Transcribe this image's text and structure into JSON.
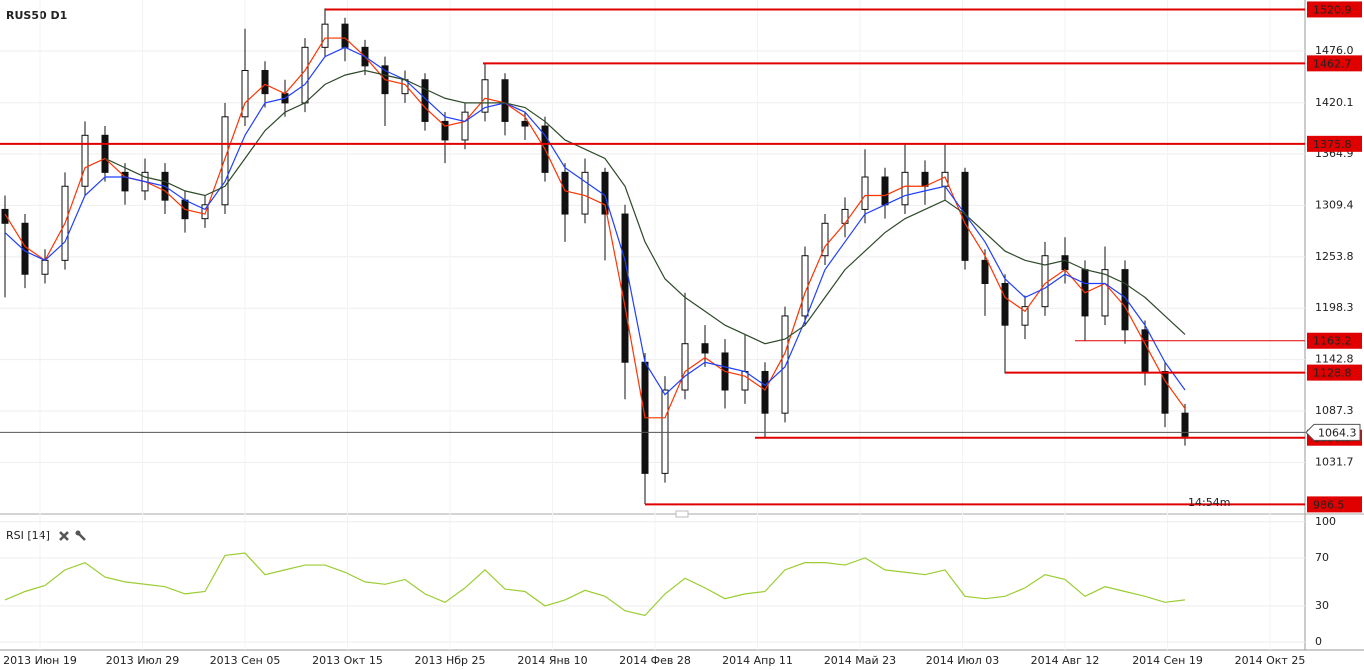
{
  "chart_data": [
    {
      "type": "candlestick",
      "title": "RUS50 D1",
      "open": [
        1305,
        1290,
        1235,
        1250,
        1330,
        1385,
        1345,
        1325,
        1345,
        1315,
        1295,
        1310,
        1405,
        1455,
        1430,
        1420,
        1480,
        1505,
        1480,
        1460,
        1430,
        1445,
        1400,
        1380,
        1410,
        1445,
        1400,
        1395,
        1345,
        1300,
        1345,
        1300,
        1140,
        1020,
        1110,
        1160,
        1150,
        1110,
        1130,
        1085,
        1190,
        1255,
        1290,
        1305,
        1340,
        1310,
        1345,
        1330,
        1345,
        1250,
        1225,
        1180,
        1200,
        1255,
        1240,
        1190,
        1240,
        1175,
        1130,
        1085
      ],
      "high": [
        1320,
        1300,
        1262,
        1345,
        1400,
        1395,
        1355,
        1360,
        1355,
        1325,
        1320,
        1420,
        1500,
        1465,
        1445,
        1490,
        1522,
        1512,
        1488,
        1470,
        1455,
        1452,
        1410,
        1420,
        1463,
        1452,
        1410,
        1405,
        1355,
        1360,
        1350,
        1310,
        1150,
        1125,
        1215,
        1180,
        1165,
        1170,
        1140,
        1200,
        1265,
        1300,
        1318,
        1370,
        1350,
        1375,
        1358,
        1376,
        1350,
        1262,
        1235,
        1212,
        1270,
        1275,
        1250,
        1265,
        1250,
        1185,
        1140,
        1095
      ],
      "low": [
        1210,
        1220,
        1225,
        1240,
        1320,
        1335,
        1310,
        1315,
        1300,
        1280,
        1285,
        1300,
        1395,
        1415,
        1405,
        1410,
        1470,
        1465,
        1450,
        1395,
        1420,
        1390,
        1355,
        1370,
        1400,
        1385,
        1380,
        1335,
        1270,
        1290,
        1250,
        1100,
        987,
        1010,
        1100,
        1135,
        1090,
        1095,
        1058,
        1075,
        1180,
        1245,
        1275,
        1290,
        1295,
        1300,
        1310,
        1315,
        1240,
        1190,
        1128,
        1165,
        1190,
        1225,
        1163,
        1180,
        1160,
        1115,
        1070,
        1050
      ],
      "close": [
        1290,
        1235,
        1250,
        1330,
        1385,
        1345,
        1325,
        1345,
        1315,
        1295,
        1310,
        1405,
        1455,
        1430,
        1420,
        1480,
        1505,
        1480,
        1460,
        1430,
        1445,
        1400,
        1380,
        1410,
        1445,
        1400,
        1395,
        1345,
        1300,
        1345,
        1300,
        1140,
        1020,
        1110,
        1160,
        1150,
        1110,
        1130,
        1085,
        1190,
        1255,
        1290,
        1305,
        1340,
        1310,
        1345,
        1330,
        1345,
        1250,
        1225,
        1180,
        1200,
        1255,
        1240,
        1190,
        1240,
        1175,
        1130,
        1085,
        1060
      ],
      "moving_averages": [
        {
          "color": "#ff3300",
          "values": [
            1300,
            1265,
            1250,
            1290,
            1350,
            1360,
            1340,
            1335,
            1325,
            1305,
            1300,
            1360,
            1420,
            1440,
            1430,
            1455,
            1490,
            1490,
            1470,
            1445,
            1440,
            1415,
            1395,
            1400,
            1425,
            1420,
            1405,
            1370,
            1325,
            1320,
            1310,
            1200,
            1080,
            1080,
            1130,
            1145,
            1130,
            1125,
            1110,
            1150,
            1215,
            1265,
            1290,
            1320,
            1320,
            1330,
            1330,
            1340,
            1290,
            1255,
            1210,
            1195,
            1225,
            1240,
            1215,
            1225,
            1200,
            1160,
            1120,
            1090
          ]
        },
        {
          "color": "#1f3fff",
          "values": [
            1280,
            1260,
            1250,
            1270,
            1320,
            1340,
            1340,
            1335,
            1330,
            1315,
            1305,
            1335,
            1385,
            1420,
            1425,
            1440,
            1470,
            1480,
            1470,
            1455,
            1445,
            1425,
            1405,
            1400,
            1415,
            1420,
            1410,
            1385,
            1350,
            1335,
            1320,
            1250,
            1140,
            1105,
            1125,
            1140,
            1135,
            1130,
            1115,
            1135,
            1185,
            1240,
            1270,
            1300,
            1310,
            1320,
            1325,
            1330,
            1300,
            1270,
            1230,
            1210,
            1220,
            1235,
            1225,
            1225,
            1210,
            1180,
            1140,
            1110
          ]
        },
        {
          "color": "#2e4a2a",
          "values": [
            null,
            null,
            null,
            null,
            null,
            1360,
            1350,
            1340,
            1335,
            1325,
            1320,
            1330,
            1360,
            1390,
            1410,
            1420,
            1440,
            1450,
            1455,
            1450,
            1445,
            1435,
            1425,
            1420,
            1420,
            1420,
            1415,
            1400,
            1380,
            1370,
            1360,
            1330,
            1270,
            1230,
            1210,
            1195,
            1180,
            1170,
            1160,
            1165,
            1180,
            1210,
            1240,
            1260,
            1280,
            1295,
            1305,
            1315,
            1300,
            1280,
            1260,
            1250,
            1245,
            1250,
            1240,
            1235,
            1225,
            1210,
            1190,
            1170
          ]
        }
      ],
      "levels": [
        1520.9,
        1462.7,
        1375.8,
        1163.2,
        1128.8,
        1058.5,
        986.5
      ],
      "level_color": "#e00000",
      "last_price": 1064.3,
      "timer": "14:54m",
      "ylim": [
        978.3,
        1531.1
      ],
      "yticks": [
        {
          "value": 1476,
          "label": "1476.0"
        },
        1420.1,
        1364.9,
        1309.4,
        1253.8,
        1198.3,
        1142.8,
        1087.3,
        1031.7
      ],
      "grid": true,
      "x_labels": [
        "2013 Июн 19",
        "2013 Июл 29",
        "2013 Сен 05",
        "2013 Окт 15",
        "2013 Нбр 25",
        "2014 Янв 10",
        "2014 Фев 28",
        "2014 Апр 11",
        "2014 Май 23",
        "2014 Июл 03",
        "2014 Авг 12",
        "2014 Сен 19",
        "2014 Окт 25"
      ]
    },
    {
      "type": "line",
      "title": "RSI [14]",
      "color": "#9acd32",
      "values": [
        35,
        42,
        47,
        60,
        66,
        54,
        50,
        48,
        46,
        40,
        42,
        72,
        74,
        56,
        60,
        64,
        64,
        58,
        50,
        48,
        52,
        40,
        33,
        45,
        60,
        44,
        42,
        30,
        35,
        43,
        38,
        26,
        22,
        40,
        53,
        45,
        36,
        40,
        42,
        60,
        66,
        66,
        64,
        70,
        60,
        58,
        56,
        60,
        38,
        36,
        38,
        45,
        56,
        52,
        38,
        46,
        42,
        38,
        33,
        35
      ],
      "ylim": [
        -6.7,
        104
      ],
      "yticks": [
        100,
        70,
        30,
        0
      ]
    }
  ]
}
